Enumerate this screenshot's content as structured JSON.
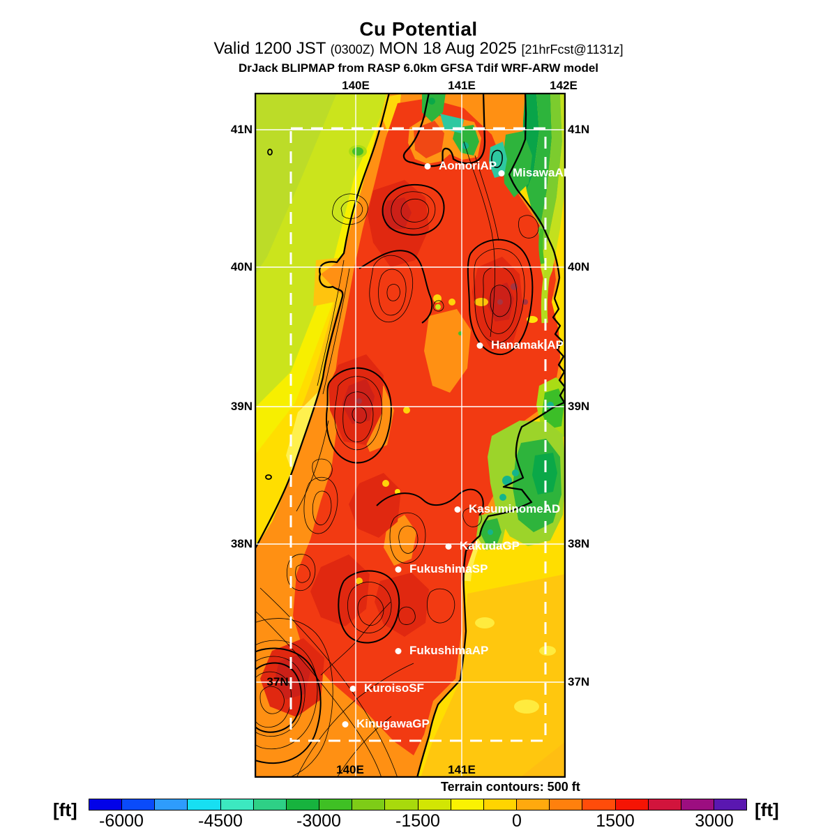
{
  "title": {
    "main": "Cu Potential",
    "valid": "Valid 1200 JST",
    "zulu": "(0300Z)",
    "date": "MON 18 Aug 2025",
    "fcst": "[21hrFcst@1131z]",
    "model": "DrJack BLIPMAP from RASP 6.0km GFSA Tdif WRF-ARW model"
  },
  "axes": {
    "top": [
      "140E",
      "141E",
      "142E"
    ],
    "bottom": [
      "140E",
      "141E"
    ],
    "left": [
      "41N",
      "40N",
      "39N",
      "38N"
    ],
    "left_inner": "37N",
    "right": [
      "41N",
      "40N",
      "39N",
      "38N",
      "37N"
    ]
  },
  "sites": [
    {
      "name": "AomoriAP"
    },
    {
      "name": "MisawaAD"
    },
    {
      "name": "HanamakiAP"
    },
    {
      "name": "KasuminomeAD"
    },
    {
      "name": "KakudaGP"
    },
    {
      "name": "FukushimaSP"
    },
    {
      "name": "FukushimaAP"
    },
    {
      "name": "KuroisoSF"
    },
    {
      "name": "KinugawaGP"
    }
  ],
  "note": "Terrain contours: 500 ft",
  "colorbar": {
    "unit_left": "[ft]",
    "unit_right": "[ft]",
    "ticks": [
      "-6000",
      "-4500",
      "-3000",
      "-1500",
      "0",
      "1500",
      "3000"
    ],
    "colors": [
      "#0202e8",
      "#0a4bfa",
      "#2e9cfc",
      "#17dff2",
      "#3ce8c0",
      "#2ed086",
      "#17b33e",
      "#3fc024",
      "#7ecc17",
      "#a8da0c",
      "#d2e603",
      "#faf202",
      "#ffd400",
      "#ffa90e",
      "#ff800d",
      "#ff4c0a",
      "#f51404",
      "#d2143c",
      "#9c0e80",
      "#5a17b0"
    ]
  },
  "chart_data": {
    "type": "heatmap",
    "title": "Cu Potential",
    "units": "ft",
    "scale_ticks": [
      -6000,
      -4500,
      -3000,
      -1500,
      0,
      1500,
      3000
    ],
    "scale_range": [
      -6500,
      3500
    ],
    "scale_step": 500,
    "terrain_contour_interval_ft": 500,
    "region": {
      "lon_labels": [
        "140E",
        "141E",
        "142E"
      ],
      "lat_labels": [
        "41N",
        "40N",
        "39N",
        "38N",
        "37N"
      ]
    },
    "legend_position": "bottom"
  }
}
